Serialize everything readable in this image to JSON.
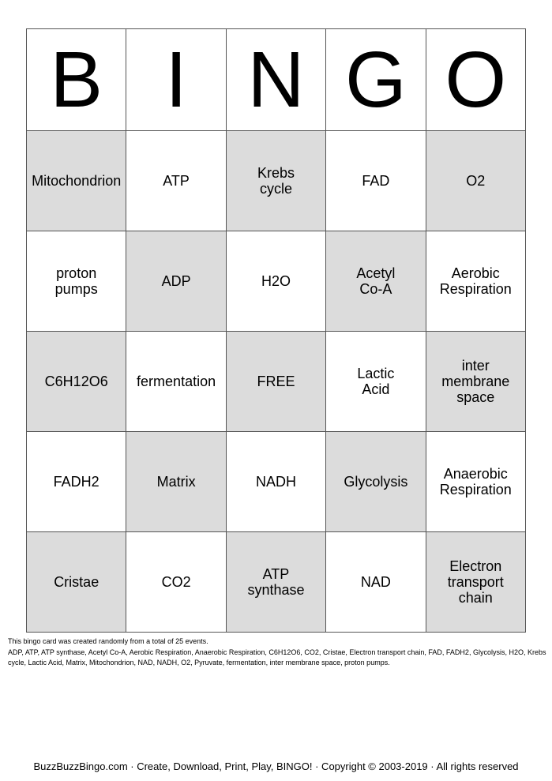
{
  "header": [
    "B",
    "I",
    "N",
    "G",
    "O"
  ],
  "colors": {
    "shaded": "#dcdcdc",
    "plain": "#ffffff",
    "border": "#555555"
  },
  "grid": [
    [
      "Mitochondrion",
      "ATP",
      "Krebs\ncycle",
      "FAD",
      "O2"
    ],
    [
      "proton\npumps",
      "ADP",
      "H2O",
      "Acetyl\nCo-A",
      "Aerobic\nRespiration"
    ],
    [
      "C6H12O6",
      "fermentation",
      "FREE",
      "Lactic\nAcid",
      "inter\nmembrane\nspace"
    ],
    [
      "FADH2",
      "Matrix",
      "NADH",
      "Glycolysis",
      "Anaerobic\nRespiration"
    ],
    [
      "Cristae",
      "CO2",
      "ATP\nsynthase",
      "NAD",
      "Electron\ntransport\nchain"
    ]
  ],
  "info": {
    "line1": "This bingo card was created randomly from a total of 25 events.",
    "line2": "ADP, ATP, ATP synthase, Acetyl Co-A, Aerobic Respiration, Anaerobic Respiration, C6H12O6, CO2, Cristae, Electron transport chain, FAD, FADH2, Glycolysis, H2O, Krebs cycle, Lactic Acid, Matrix, Mitochondrion, NAD, NADH, O2, Pyruvate, fermentation, inter membrane space, proton pumps."
  },
  "footer": "BuzzBuzzBingo.com · Create, Download, Print, Play, BINGO! · Copyright © 2003-2019 · All rights reserved"
}
